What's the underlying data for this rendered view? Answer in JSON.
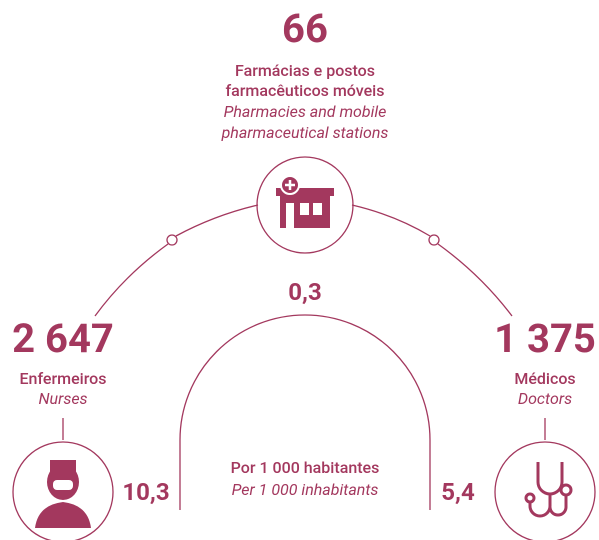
{
  "pharmacies": {
    "value": "66",
    "label_pt": [
      "Farmácias e postos",
      "farmacêuticos móveis"
    ],
    "label_en": [
      "Pharmacies and mobile",
      "pharmaceutical stations"
    ]
  },
  "nurses": {
    "value": "2 647",
    "label_pt": "Enfermeiros",
    "label_en": "Nurses"
  },
  "doctors": {
    "value": "1 375",
    "label_pt": "Médicos",
    "label_en": "Doctors"
  },
  "ratios": {
    "pharmacies": "0,3",
    "nurses": "10,3",
    "doctors": "5,4",
    "label_pt": "Por 1 000 habitantes",
    "label_en": "Per 1 000 inhabitants"
  }
}
